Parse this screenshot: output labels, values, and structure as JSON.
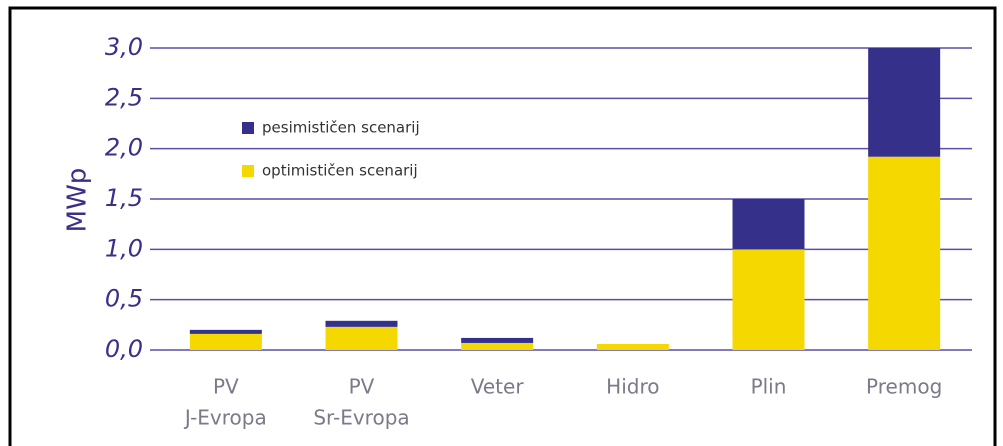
{
  "chart_data": {
    "type": "stacked-bar",
    "y_label": "MWp",
    "categories": [
      [
        "PV",
        "J-Evropa"
      ],
      [
        "PV",
        "Sr-Evropa"
      ],
      [
        "Veter"
      ],
      [
        "Hidro"
      ],
      [
        "Plin"
      ],
      [
        "Premog"
      ]
    ],
    "series": [
      {
        "name": "optimističen scenarij",
        "color": "#f5d800",
        "values": [
          0.16,
          0.23,
          0.07,
          0.06,
          1.0,
          1.92
        ]
      },
      {
        "name": "pesimističen scenarij",
        "color": "#35318a",
        "values": [
          0.04,
          0.06,
          0.05,
          0,
          0.5,
          1.08
        ]
      }
    ],
    "ylim": [
      0,
      3
    ],
    "yticks": [
      {
        "value": 0,
        "label": "0,0"
      },
      {
        "value": 0.5,
        "label": "0,5"
      },
      {
        "value": 1,
        "label": "1,0"
      },
      {
        "value": 1.5,
        "label": "1,5"
      },
      {
        "value": 2,
        "label": "2,0"
      },
      {
        "value": 2.5,
        "label": "2,5"
      },
      {
        "value": 3,
        "label": "3,0"
      }
    ],
    "grid": true
  }
}
